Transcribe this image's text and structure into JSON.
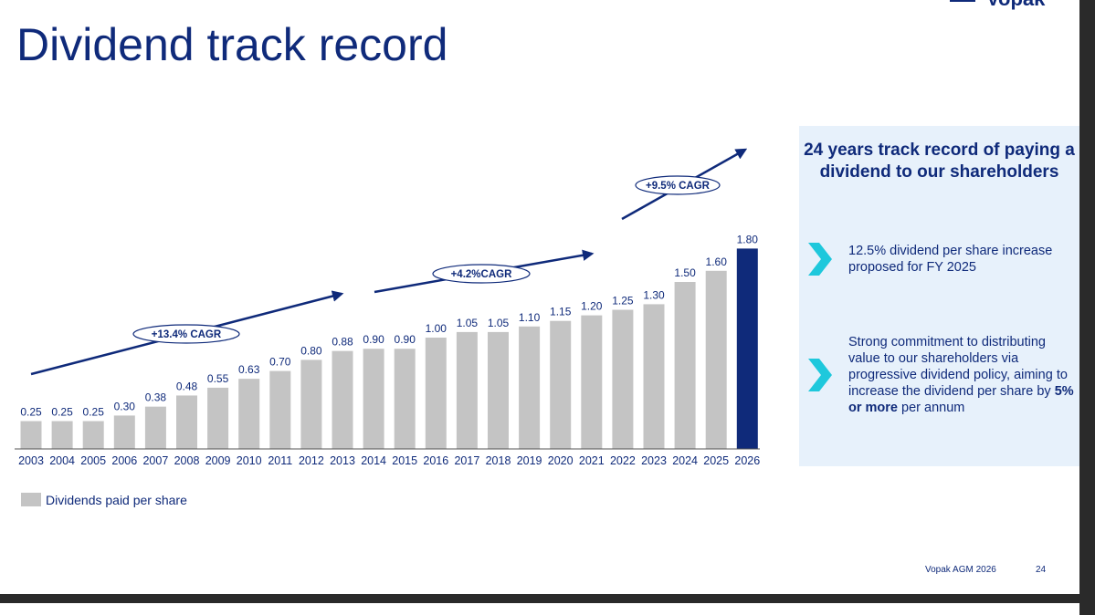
{
  "page": {
    "brand": "Vopak",
    "title": "Dividend track record",
    "footer": {
      "event": "Vopak AGM 2026",
      "page_number": "24"
    }
  },
  "colors": {
    "navy": "#0f2a7a",
    "bar_grey": "#c4c4c4",
    "highlight_bar": "#0f2a7a",
    "panel_bg": "#e7f1fb",
    "chevron": "#1ec8dc"
  },
  "chart_data": {
    "type": "bar",
    "categories": [
      "2003",
      "2004",
      "2005",
      "2006",
      "2007",
      "2008",
      "2009",
      "2010",
      "2011",
      "2012",
      "2013",
      "2014",
      "2015",
      "2016",
      "2017",
      "2018",
      "2019",
      "2020",
      "2021",
      "2022",
      "2023",
      "2024",
      "2025",
      "2026"
    ],
    "series": [
      {
        "name": "Dividends paid per share",
        "values": [
          0.25,
          0.25,
          0.25,
          0.3,
          0.38,
          0.48,
          0.55,
          0.63,
          0.7,
          0.8,
          0.88,
          0.9,
          0.9,
          1.0,
          1.05,
          1.05,
          1.1,
          1.15,
          1.2,
          1.25,
          1.3,
          1.5,
          1.6,
          1.8
        ],
        "labels": [
          "0.25",
          "0.25",
          "0.25",
          "0.30",
          "0.38",
          "0.48",
          "0.55",
          "0.63",
          "0.70",
          "0.80",
          "0.88",
          "0.90",
          "0.90",
          "1.00",
          "1.05",
          "1.05",
          "1.10",
          "1.15",
          "1.20",
          "1.25",
          "1.30",
          "1.50",
          "1.60",
          "1.80"
        ]
      }
    ],
    "highlight_category": "2026",
    "ylim": [
      0,
      2.0
    ],
    "grid": false,
    "legend_position": "bottom-left",
    "annotations": [
      {
        "text": "+13.4% CAGR",
        "from": "2003",
        "to": "2013"
      },
      {
        "text": "+4.2%CAGR",
        "from": "2014",
        "to": "2021"
      },
      {
        "text": "+9.5% CAGR",
        "from": "2022",
        "to": "2026"
      }
    ]
  },
  "info_panel": {
    "heading": "24 years track record of paying a dividend to our shareholders",
    "bullets": [
      {
        "icon": "chevron-right-icon",
        "text": "12.5% dividend per share increase proposed for FY 2025"
      },
      {
        "icon": "chevron-right-icon",
        "text_before": "Strong commitment to distributing value to our shareholders via progressive dividend policy, aiming to increase the dividend per share by ",
        "text_bold": "5% or more",
        "text_after": " per annum"
      }
    ]
  }
}
